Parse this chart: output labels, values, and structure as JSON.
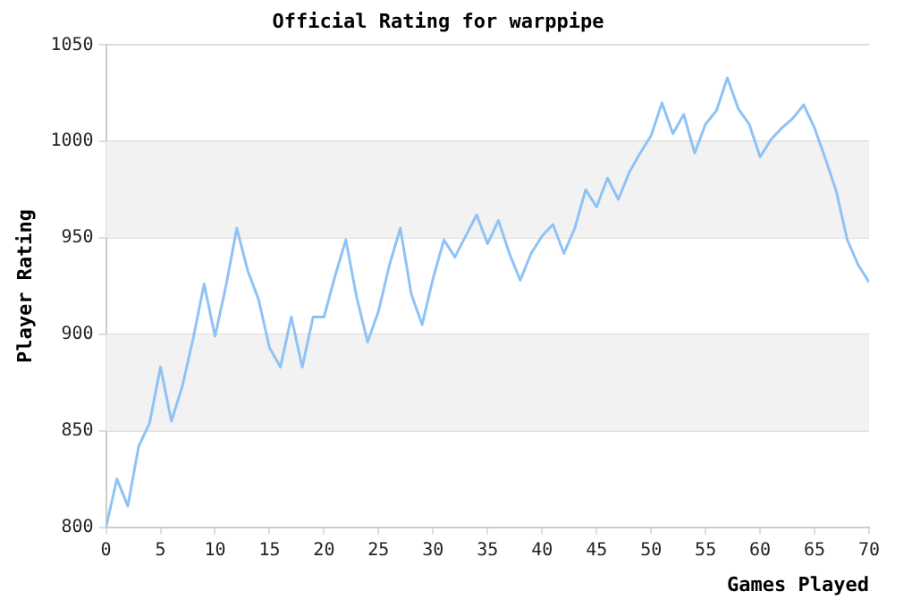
{
  "chart_data": {
    "type": "line",
    "title": "Official Rating for warppipe",
    "xlabel": "Games Played",
    "ylabel": "Player Rating",
    "x": [
      0,
      1,
      2,
      3,
      4,
      5,
      6,
      7,
      8,
      9,
      10,
      11,
      12,
      13,
      14,
      15,
      16,
      17,
      18,
      19,
      20,
      21,
      22,
      23,
      24,
      25,
      26,
      27,
      28,
      29,
      30,
      31,
      32,
      33,
      34,
      35,
      36,
      37,
      38,
      39,
      40,
      41,
      42,
      43,
      44,
      45,
      46,
      47,
      48,
      49,
      50,
      51,
      52,
      53,
      54,
      55,
      56,
      57,
      58,
      59,
      60,
      61,
      62,
      63,
      64,
      65,
      66,
      67,
      68,
      69,
      70
    ],
    "series": [
      {
        "color": "#8fc3f5",
        "values": [
          800,
          825,
          811,
          842,
          854,
          883,
          855,
          873,
          898,
          926,
          899,
          925,
          955,
          933,
          918,
          893,
          883,
          909,
          883,
          909,
          909,
          930,
          949,
          919,
          896,
          912,
          936,
          955,
          921,
          905,
          929,
          949,
          940,
          951,
          962,
          947,
          959,
          942,
          928,
          942,
          951,
          957,
          942,
          955,
          975,
          966,
          981,
          970,
          984,
          994,
          1003,
          1020,
          1004,
          1014,
          994,
          1009,
          1016,
          1033,
          1017,
          1009,
          992,
          1001,
          1007,
          1012,
          1019,
          1007,
          991,
          974,
          949,
          936,
          927
        ]
      }
    ],
    "xlim": [
      0,
      70
    ],
    "xticks": [
      0,
      5,
      10,
      15,
      20,
      25,
      30,
      35,
      40,
      45,
      50,
      55,
      60,
      65,
      70
    ],
    "ylim": [
      800,
      1050
    ],
    "yticks": [
      800,
      850,
      900,
      950,
      1000,
      1050
    ],
    "grid": "y",
    "legend": false,
    "marker": "none",
    "line_style": "solid"
  }
}
